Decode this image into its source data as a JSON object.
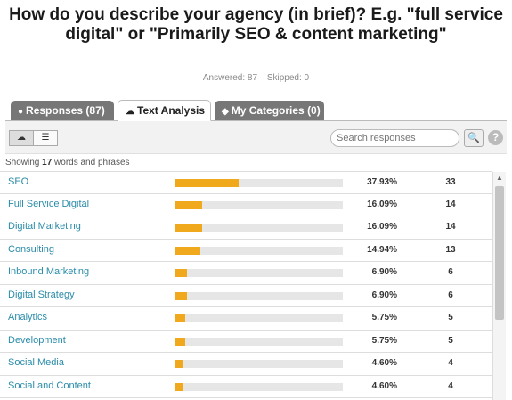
{
  "question": {
    "title": "How do you describe your agency (in brief)? E.g. \"full service digital\" or \"Primarily SEO & content marketing\"",
    "answered": "Answered: 87",
    "skipped": "Skipped: 0"
  },
  "tabs": [
    {
      "label": "Responses (87)",
      "icon": "speech-bubble-icon",
      "active": false
    },
    {
      "label": "Text Analysis",
      "icon": "cloud-icon",
      "active": true
    },
    {
      "label": "My Categories (0)",
      "icon": "tag-icon",
      "active": false
    }
  ],
  "toolbar": {
    "search_placeholder": "Search responses",
    "search_button": "🔍",
    "help": "?",
    "view_cloud_icon": "☁",
    "view_list_icon": "☰"
  },
  "summary": {
    "prefix": "Showing ",
    "count": "17",
    "suffix": " words and phrases"
  },
  "rows": [
    {
      "label": "SEO",
      "pct": "37.93%",
      "count": "33",
      "fraction": 0.3793
    },
    {
      "label": "Full Service Digital",
      "pct": "16.09%",
      "count": "14",
      "fraction": 0.1609
    },
    {
      "label": "Digital Marketing",
      "pct": "16.09%",
      "count": "14",
      "fraction": 0.1609
    },
    {
      "label": "Consulting",
      "pct": "14.94%",
      "count": "13",
      "fraction": 0.1494
    },
    {
      "label": "Inbound Marketing",
      "pct": "6.90%",
      "count": "6",
      "fraction": 0.069
    },
    {
      "label": "Digital Strategy",
      "pct": "6.90%",
      "count": "6",
      "fraction": 0.069
    },
    {
      "label": "Analytics",
      "pct": "5.75%",
      "count": "5",
      "fraction": 0.0575
    },
    {
      "label": "Development",
      "pct": "5.75%",
      "count": "5",
      "fraction": 0.0575
    },
    {
      "label": "Social Media",
      "pct": "4.60%",
      "count": "4",
      "fraction": 0.046
    },
    {
      "label": "Social and Content",
      "pct": "4.60%",
      "count": "4",
      "fraction": 0.046
    }
  ],
  "colors": {
    "bar_fill": "#f0a81c",
    "bar_track": "#e6e6e6",
    "link": "#2a8caa",
    "tab_inactive": "#777777"
  }
}
